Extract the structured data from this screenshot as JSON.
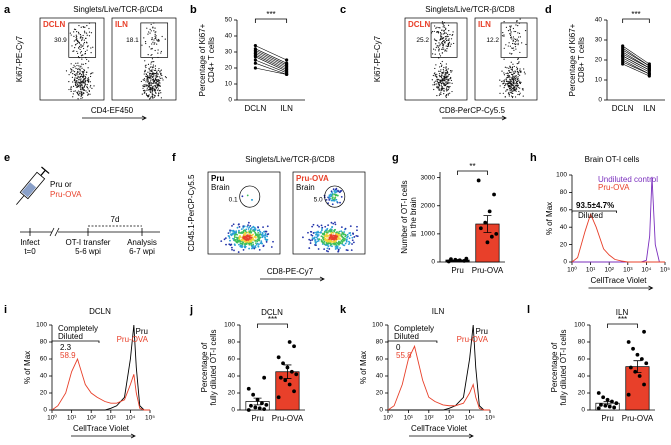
{
  "chart_data": [
    {
      "type": "paired",
      "panel": "b",
      "ylabel": [
        "Percentage of Ki67+",
        "CD4+ T cells"
      ],
      "categories": [
        "DCLN",
        "ILN"
      ],
      "values": [
        [
          34,
          32,
          31,
          30,
          29,
          28,
          27,
          25,
          23,
          20
        ],
        [
          25,
          23,
          22,
          21,
          20,
          19,
          18,
          17,
          16,
          16
        ]
      ],
      "ylim": [
        0,
        50
      ],
      "yticks": [
        0,
        10,
        20,
        30,
        40,
        50
      ],
      "significance": "***",
      "color": "#000000"
    },
    {
      "type": "paired",
      "panel": "d",
      "ylabel": [
        "Percentage of Ki67+",
        "CD8+ T cells"
      ],
      "categories": [
        "DCLN",
        "ILN"
      ],
      "values": [
        [
          27,
          26,
          25,
          24,
          23,
          22,
          22,
          21,
          20,
          19,
          18
        ],
        [
          18,
          17,
          17,
          16,
          16,
          15,
          15,
          14,
          13,
          13,
          12
        ]
      ],
      "ylim": [
        0,
        40
      ],
      "yticks": [
        0,
        10,
        20,
        30,
        40
      ],
      "significance": "***",
      "color": "#000000"
    },
    {
      "type": "bar",
      "panel": "g",
      "ylabel": [
        "Number of OT-I cells",
        "in the brain"
      ],
      "categories": [
        "Pru",
        "Pru-OVA"
      ],
      "values": [
        70,
        1350
      ],
      "errors": [
        20,
        300
      ],
      "points": [
        [
          20,
          40,
          60,
          80,
          100,
          120
        ],
        [
          2900,
          2400,
          1800,
          1400,
          1200,
          1000,
          900,
          700
        ]
      ],
      "bar_colors": [
        "#000000",
        "#e8402a"
      ],
      "ylim": [
        0,
        3200
      ],
      "yticks": [
        0,
        1000,
        2000,
        3000
      ],
      "significance": "**"
    },
    {
      "type": "line",
      "panel": "h",
      "title": "Brain OT-I cells",
      "ylabel": [
        "% of Max"
      ],
      "xlabel": "CellTrace Violet",
      "log_x": true,
      "x": [
        1,
        2,
        5,
        10,
        20,
        50,
        100,
        200,
        500,
        1000,
        2000,
        5000,
        10000,
        15000,
        20000,
        30000,
        50000,
        100000
      ],
      "series": [
        {
          "name": "Undiluted control",
          "color": "#7b2fbe",
          "values": [
            0,
            0,
            0,
            0,
            0,
            0,
            0,
            0,
            0,
            0,
            0,
            0,
            2,
            30,
            98,
            20,
            0,
            0
          ]
        },
        {
          "name": "Pru-OVA",
          "color": "#e8402a",
          "values": [
            0,
            5,
            35,
            55,
            40,
            15,
            8,
            3,
            1,
            0,
            0,
            0,
            0,
            0,
            0,
            0,
            0,
            0
          ]
        }
      ],
      "annotations": [
        {
          "text": "93.5±4.7%",
          "color": "#000000"
        },
        {
          "text": "Diluted",
          "color": "#000000"
        }
      ],
      "xlim": [
        1,
        100000
      ],
      "xticks": [
        {
          "value": 1,
          "label": "10⁰"
        },
        {
          "value": 10,
          "label": "10¹"
        },
        {
          "value": 100,
          "label": "10²"
        },
        {
          "value": 1000,
          "label": "10³"
        },
        {
          "value": 10000,
          "label": "10⁴"
        },
        {
          "value": 100000,
          "label": "10⁵"
        }
      ],
      "ylim": [
        0,
        100
      ],
      "yticks": [
        0,
        20,
        40,
        60,
        80,
        100
      ]
    },
    {
      "type": "line",
      "panel": "i",
      "title": "DCLN",
      "ylabel": [
        "% of Max"
      ],
      "xlabel": "CellTrace Violet",
      "log_x": true,
      "x": [
        1,
        2,
        5,
        10,
        20,
        50,
        100,
        200,
        500,
        1000,
        2000,
        5000,
        10000,
        15000,
        20000,
        30000,
        50000,
        100000
      ],
      "series": [
        {
          "name": "Pru",
          "color": "#000000",
          "values": [
            0,
            0,
            0,
            0,
            0,
            0,
            0,
            0,
            0,
            2,
            5,
            15,
            60,
            100,
            50,
            5,
            0,
            0
          ]
        },
        {
          "name": "Pru-OVA",
          "color": "#e8402a",
          "values": [
            0,
            5,
            20,
            45,
            60,
            30,
            20,
            15,
            10,
            8,
            8,
            12,
            30,
            42,
            20,
            2,
            0,
            0
          ]
        }
      ],
      "annotations": [
        {
          "text": "Completely",
          "color": "#000000"
        },
        {
          "text": "Diluted",
          "color": "#000000"
        },
        {
          "text": "2.3",
          "color": "#000000"
        },
        {
          "text": "58.9",
          "color": "#e8402a"
        }
      ],
      "xlim": [
        1,
        100000
      ],
      "xticks": [
        {
          "value": 1,
          "label": "10⁰"
        },
        {
          "value": 10,
          "label": "10¹"
        },
        {
          "value": 100,
          "label": "10²"
        },
        {
          "value": 1000,
          "label": "10³"
        },
        {
          "value": 10000,
          "label": "10⁴"
        },
        {
          "value": 100000,
          "label": "10⁵"
        }
      ],
      "ylim": [
        0,
        100
      ],
      "yticks": [
        0,
        20,
        40,
        60,
        80,
        100
      ]
    },
    {
      "type": "bar",
      "panel": "j",
      "title": "DCLN",
      "ylabel": [
        "Percentage of",
        "fully diluted OT-I cells"
      ],
      "categories": [
        "Pru",
        "Pru-OVA"
      ],
      "values": [
        10,
        45
      ],
      "errors": [
        4,
        8
      ],
      "points": [
        [
          0,
          1,
          2,
          3,
          5,
          6,
          8,
          12,
          18,
          25,
          38
        ],
        [
          15,
          22,
          30,
          35,
          38,
          42,
          45,
          50,
          55,
          62,
          75,
          80
        ]
      ],
      "bar_colors": [
        "#ffffff",
        "#e8402a"
      ],
      "ylim": [
        0,
        100
      ],
      "yticks": [
        0,
        20,
        40,
        60,
        80,
        100
      ],
      "significance": "***"
    },
    {
      "type": "line",
      "panel": "k",
      "title": "ILN",
      "ylabel": [
        "% of Max"
      ],
      "xlabel": "CellTrace Violet",
      "log_x": true,
      "x": [
        1,
        2,
        5,
        10,
        20,
        50,
        100,
        200,
        500,
        1000,
        2000,
        5000,
        10000,
        15000,
        20000,
        30000,
        50000,
        100000
      ],
      "series": [
        {
          "name": "Pru",
          "color": "#000000",
          "values": [
            0,
            0,
            0,
            0,
            0,
            0,
            0,
            0,
            0,
            2,
            5,
            15,
            60,
            100,
            50,
            5,
            0,
            0
          ]
        },
        {
          "name": "Pru-OVA",
          "color": "#e8402a",
          "values": [
            0,
            5,
            30,
            60,
            75,
            35,
            15,
            10,
            6,
            5,
            5,
            8,
            20,
            30,
            15,
            2,
            0,
            0
          ]
        }
      ],
      "annotations": [
        {
          "text": "Completely",
          "color": "#000000"
        },
        {
          "text": "Diluted",
          "color": "#000000"
        },
        {
          "text": "0",
          "color": "#000000"
        },
        {
          "text": "55.8",
          "color": "#e8402a"
        }
      ],
      "xlim": [
        1,
        100000
      ],
      "xticks": [
        {
          "value": 1,
          "label": "10⁰"
        },
        {
          "value": 10,
          "label": "10¹"
        },
        {
          "value": 100,
          "label": "10²"
        },
        {
          "value": 1000,
          "label": "10³"
        },
        {
          "value": 10000,
          "label": "10⁴"
        },
        {
          "value": 100000,
          "label": "10⁵"
        }
      ],
      "ylim": [
        0,
        100
      ],
      "yticks": [
        0,
        20,
        40,
        60,
        80,
        100
      ]
    },
    {
      "type": "bar",
      "panel": "l",
      "title": "ILN",
      "ylabel": [
        "Percentage of",
        "fully diluted OT-I cells"
      ],
      "categories": [
        "Pru",
        "Pru-OVA"
      ],
      "values": [
        8,
        51
      ],
      "errors": [
        2,
        7
      ],
      "points": [
        [
          2,
          3,
          4,
          5,
          6,
          8,
          10,
          12,
          15,
          20
        ],
        [
          18,
          30,
          40,
          45,
          50,
          55,
          60,
          65,
          72,
          80,
          92
        ]
      ],
      "bar_colors": [
        "#ffffff",
        "#e8402a"
      ],
      "ylim": [
        0,
        100
      ],
      "yticks": [
        0,
        20,
        40,
        60,
        80,
        100
      ],
      "significance": "***"
    }
  ],
  "flow_panels": [
    {
      "panel": "a",
      "title": "Singlets/Live/TCR-β/CD4",
      "ylabel": "Ki67-PE-Cy7",
      "xlabel": "CD4-EF450",
      "style": "contour",
      "plots": [
        {
          "tag": "DCLN",
          "tag_color": "#e8402a",
          "gate_value": 30.9
        },
        {
          "tag": "ILN",
          "tag_color": "#e8402a",
          "gate_value": 18.1
        }
      ]
    },
    {
      "panel": "c",
      "title": "Singlets/Live/TCR-β/CD8",
      "ylabel": "Ki67-PE-Cy7",
      "xlabel": "CD8-PerCP-Cy5.5",
      "style": "contour",
      "plots": [
        {
          "tag": "DCLN",
          "tag_color": "#e8402a",
          "gate_value": 25.2
        },
        {
          "tag": "ILN",
          "tag_color": "#e8402a",
          "gate_value": 12.2
        }
      ]
    },
    {
      "panel": "f",
      "title": "Singlets/Live/TCR-β/CD8",
      "ylabel": "CD45.1-PerCP-Cy5.5",
      "xlabel": "CD8-PE-Cy7",
      "style": "pseudocolor",
      "plots": [
        {
          "tag": "Pru",
          "tag_color": "#000000",
          "subtag": "Brain",
          "gate_value": 0.1
        },
        {
          "tag": "Pru-OVA",
          "tag_color": "#e8402a",
          "subtag": "Brain",
          "gate_value": {
            "value": 5,
            "label": "5.0"
          }
        }
      ]
    }
  ],
  "schematic": {
    "panel": "e",
    "inoculum": [
      "Pru or",
      "Pru-OVA"
    ],
    "interval": "7d",
    "steps": [
      [
        "Infect",
        "t=0"
      ],
      [
        "OT-I transfer",
        "5-6 wpi"
      ],
      [
        "Analysis",
        "6-7 wpi"
      ]
    ]
  }
}
